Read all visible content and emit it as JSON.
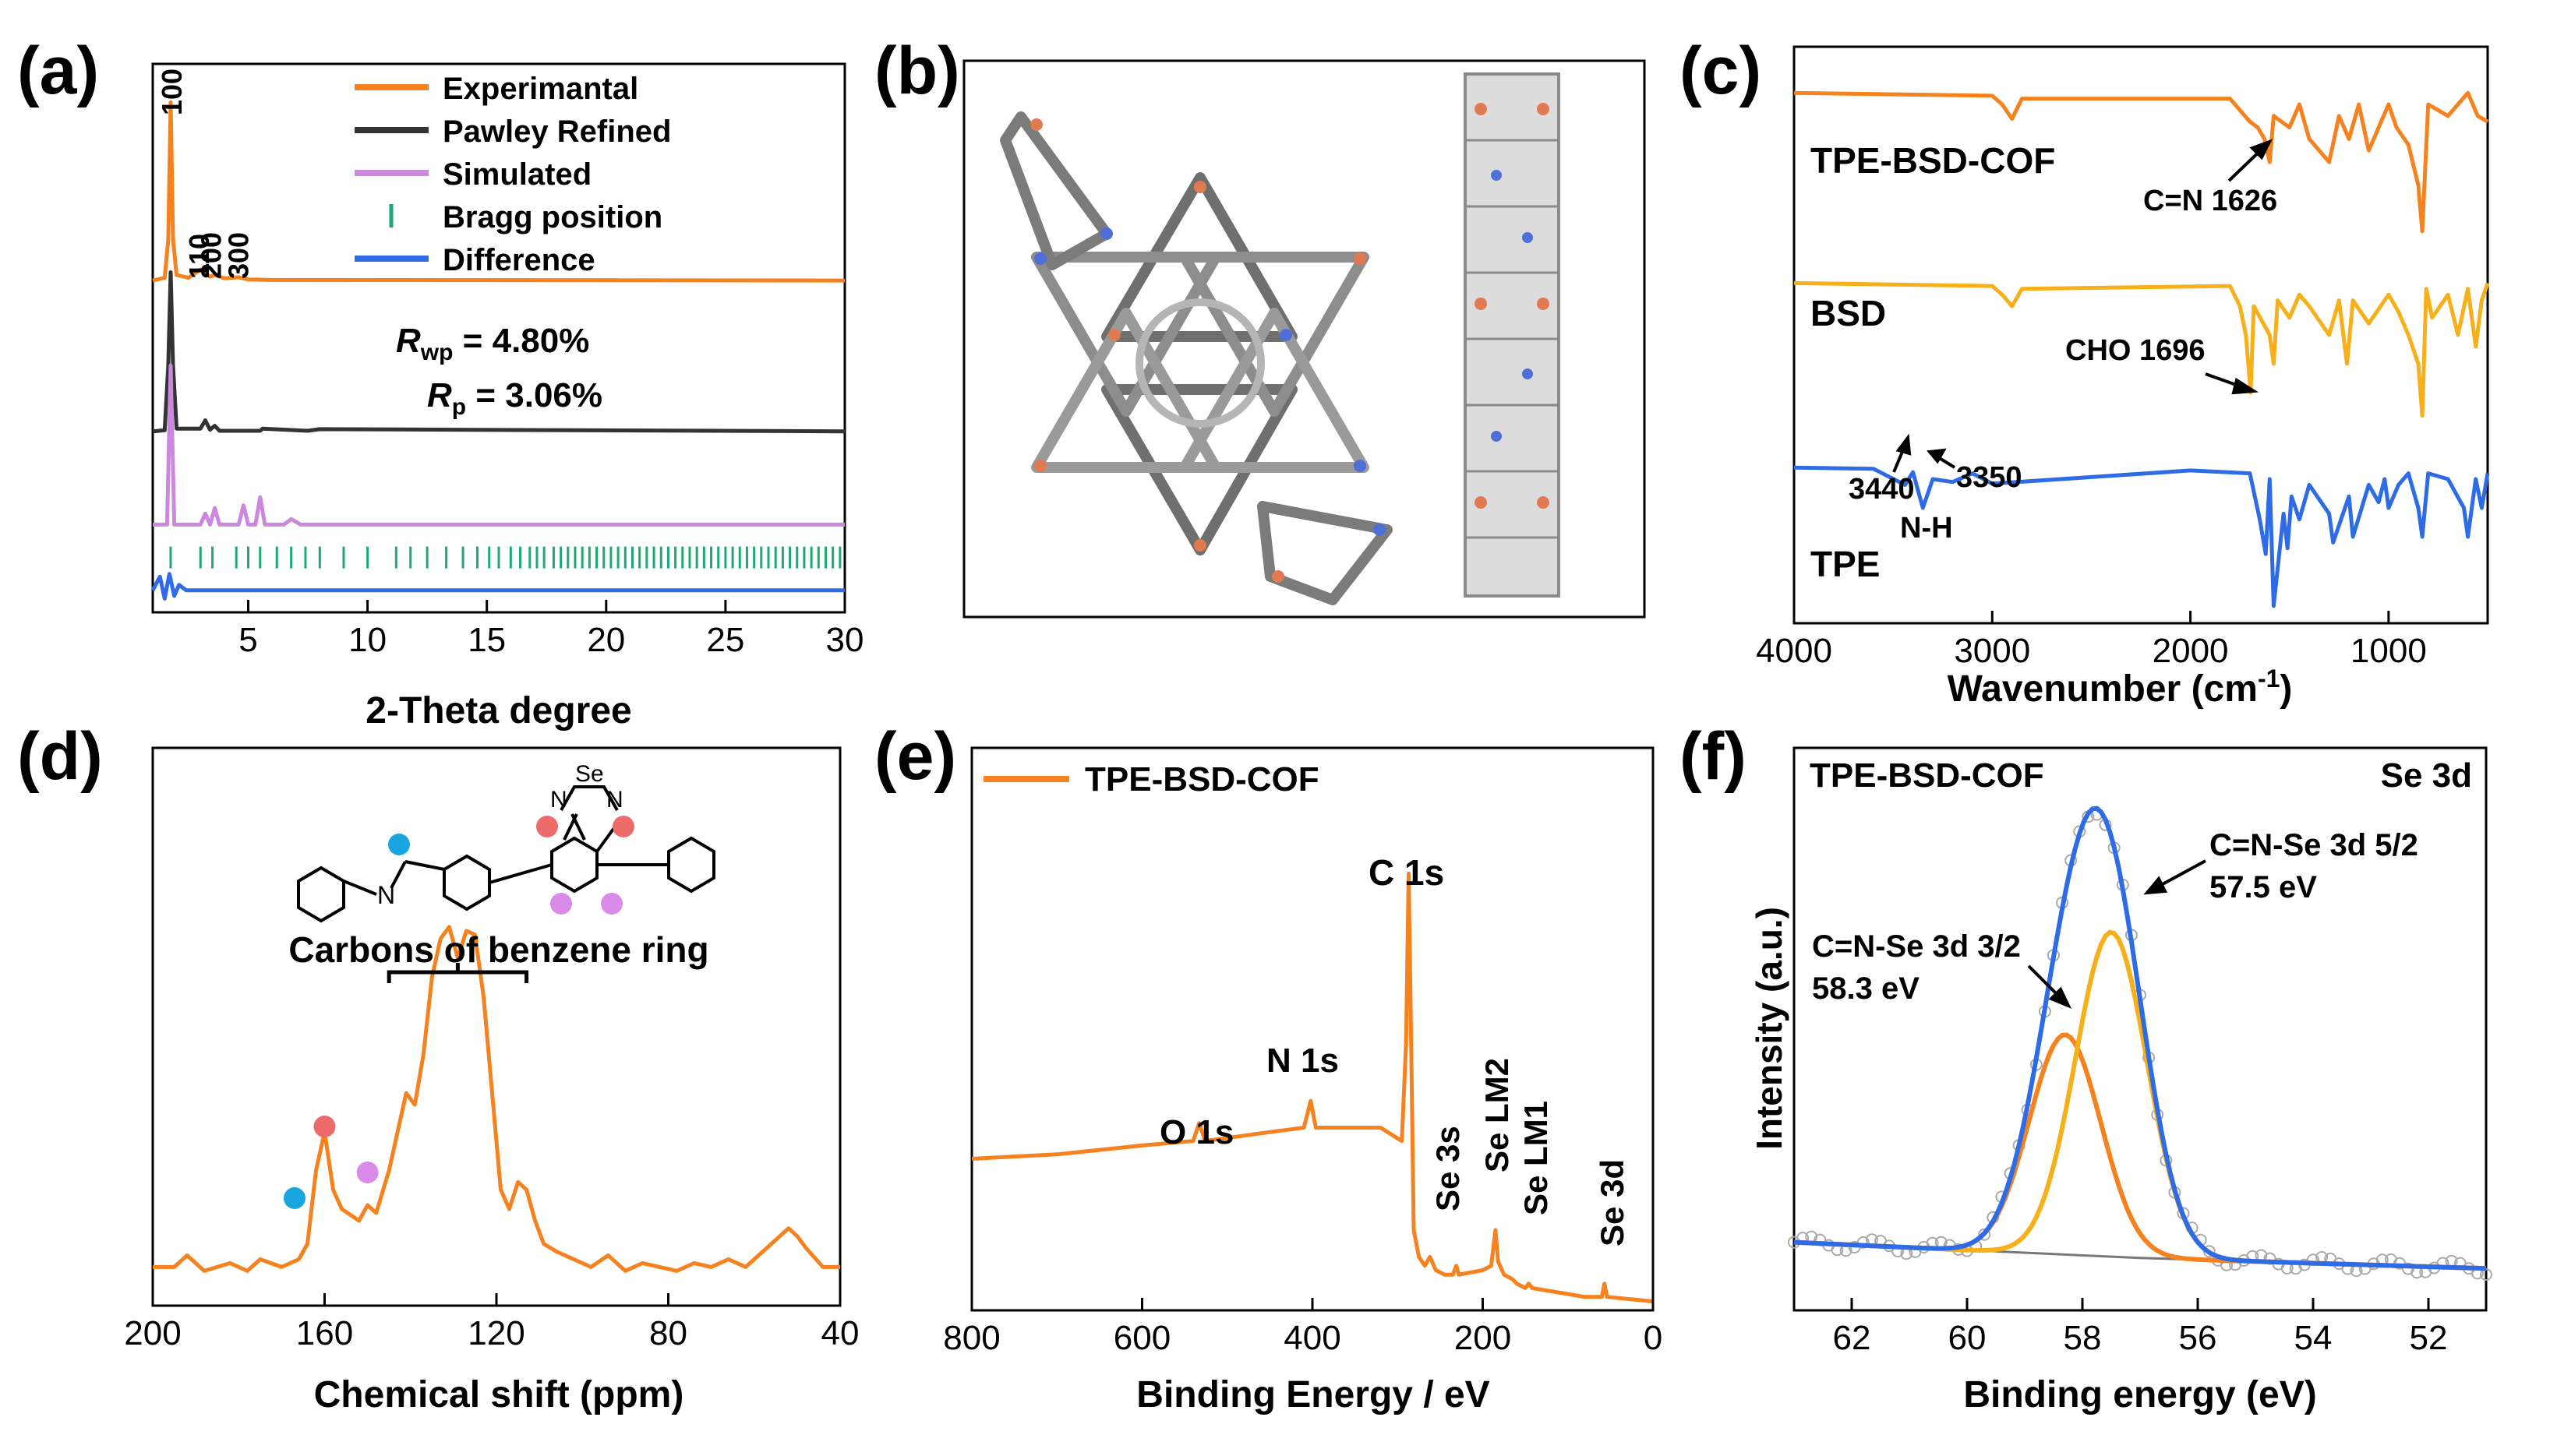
{
  "figure": {
    "colors": {
      "orange": "#F5821F",
      "dark": "#333333",
      "violet": "#CC88DD",
      "green": "#1FA874",
      "blue": "#2E6BE6",
      "gold": "#F7B01A",
      "coral": "#EE6B6B",
      "cyan": "#19A6E0",
      "pink": "#D98BE8",
      "gray": "#777777"
    }
  },
  "chart_data": [
    {
      "id": "a",
      "panel_label": "(a)",
      "type": "line",
      "xlabel": "2-Theta degree",
      "ylabel": "",
      "xlim": [
        1,
        30
      ],
      "ylim": [
        0,
        1
      ],
      "xticks": [
        "5",
        "10",
        "15",
        "20",
        "25",
        "30"
      ],
      "legend": [
        "Experimantal",
        "Pawley Refined",
        "Simulated",
        "Bragg position",
        "Difference"
      ],
      "peak_labels": [
        "100",
        "110",
        "200",
        "300"
      ],
      "peak_positions": [
        1.75,
        2.9,
        3.4,
        4.55
      ],
      "r_wp": {
        "sym": "R",
        "sub": "wp",
        "value": " = 4.80%"
      },
      "r_p": {
        "sym": "R",
        "sub": "p",
        "value": " = 3.06%"
      },
      "series": [
        {
          "name": "Experimantal",
          "x": [
            1,
            1.5,
            1.65,
            1.75,
            1.85,
            2.0,
            2.5,
            3.0,
            3.4,
            3.6,
            4.0,
            4.6,
            5.0,
            6,
            30
          ],
          "values": [
            0.605,
            0.61,
            0.68,
            0.93,
            0.68,
            0.615,
            0.61,
            0.625,
            0.612,
            0.615,
            0.609,
            0.611,
            0.607,
            0.606,
            0.605
          ]
        },
        {
          "name": "Pawley Refined",
          "x": [
            1,
            1.5,
            1.65,
            1.75,
            1.85,
            2.0,
            3.0,
            3.2,
            3.4,
            3.6,
            3.8,
            5.5,
            5.6,
            7.5,
            8,
            30
          ],
          "values": [
            0.33,
            0.332,
            0.45,
            0.62,
            0.45,
            0.335,
            0.335,
            0.35,
            0.333,
            0.34,
            0.331,
            0.331,
            0.335,
            0.331,
            0.334,
            0.33
          ]
        },
        {
          "name": "Simulated",
          "x": [
            1,
            1.6,
            1.75,
            1.9,
            3.0,
            3.2,
            3.4,
            3.6,
            3.8,
            4.6,
            4.8,
            5.0,
            5.3,
            5.5,
            5.7,
            6.5,
            6.8,
            7.2,
            30
          ],
          "values": [
            0.16,
            0.16,
            0.45,
            0.16,
            0.16,
            0.18,
            0.16,
            0.19,
            0.16,
            0.16,
            0.195,
            0.16,
            0.16,
            0.21,
            0.16,
            0.16,
            0.17,
            0.16,
            0.16
          ]
        },
        {
          "name": "Difference",
          "x": [
            1,
            1.3,
            1.5,
            1.7,
            1.9,
            2.1,
            2.4,
            3,
            30
          ],
          "values": [
            0.04,
            0.065,
            0.025,
            0.07,
            0.03,
            0.05,
            0.04,
            0.04,
            0.04
          ]
        }
      ],
      "bragg": {
        "y": 0.1,
        "positions": [
          1.75,
          3.0,
          3.5,
          4.5,
          5.0,
          5.5,
          6.2,
          6.8,
          7.4,
          8.0,
          9.0,
          10.0,
          11.2,
          11.8,
          12.5,
          13.3,
          14.0,
          14.6,
          15.1,
          15.5,
          16.0,
          16.4,
          16.8,
          17.1,
          17.4,
          17.8,
          18.1,
          18.4,
          18.7,
          19.0,
          19.3,
          19.6,
          19.9,
          20.2,
          20.5,
          20.8,
          21.1,
          21.4,
          21.7,
          22.0,
          22.3,
          22.6,
          22.9,
          23.2,
          23.5,
          23.8,
          24.1,
          24.4,
          24.7,
          25.0,
          25.3,
          25.6,
          25.9,
          26.2,
          26.5,
          26.8,
          27.1,
          27.4,
          27.7,
          28.0,
          28.3,
          28.6,
          28.9,
          29.2,
          29.5,
          29.8
        ]
      }
    },
    {
      "id": "b",
      "panel_label": "(b)",
      "type": "image",
      "description_icons": [
        "star-framework-icon",
        "stacked-column-icon"
      ]
    },
    {
      "id": "c",
      "panel_label": "(c)",
      "type": "line",
      "xlabel": "Wavenumber (cm",
      "xlabel_sup": "-1",
      "xlabel_end": ")",
      "xlim": [
        4000,
        500
      ],
      "ylim": [
        0,
        1
      ],
      "xticks": [
        "4000",
        "3000",
        "2000",
        "1000"
      ],
      "series": [
        {
          "name": "TPE-BSD-COF",
          "x": [
            4000,
            3000,
            2950,
            2900,
            2850,
            1800,
            1700,
            1660,
            1626,
            1600,
            1580,
            1500,
            1450,
            1400,
            1300,
            1250,
            1200,
            1150,
            1100,
            1000,
            960,
            900,
            850,
            830,
            800,
            700,
            600,
            550,
            500
          ],
          "values": [
            0.92,
            0.915,
            0.9,
            0.875,
            0.91,
            0.91,
            0.87,
            0.86,
            0.84,
            0.8,
            0.88,
            0.86,
            0.9,
            0.84,
            0.8,
            0.88,
            0.84,
            0.9,
            0.82,
            0.9,
            0.86,
            0.83,
            0.76,
            0.68,
            0.9,
            0.88,
            0.92,
            0.88,
            0.87
          ]
        },
        {
          "name": "BSD",
          "x": [
            4000,
            3000,
            2950,
            2900,
            2850,
            1800,
            1750,
            1720,
            1696,
            1680,
            1600,
            1580,
            1560,
            1500,
            1450,
            1400,
            1300,
            1250,
            1210,
            1180,
            1100,
            1000,
            950,
            900,
            850,
            830,
            810,
            780,
            700,
            650,
            600,
            560,
            530,
            500
          ],
          "values": [
            0.59,
            0.585,
            0.57,
            0.55,
            0.58,
            0.585,
            0.55,
            0.5,
            0.4,
            0.55,
            0.5,
            0.45,
            0.56,
            0.53,
            0.57,
            0.55,
            0.5,
            0.56,
            0.45,
            0.56,
            0.52,
            0.57,
            0.54,
            0.5,
            0.45,
            0.36,
            0.58,
            0.53,
            0.57,
            0.5,
            0.58,
            0.48,
            0.56,
            0.59
          ]
        },
        {
          "name": "TPE",
          "x": [
            4000,
            3600,
            3440,
            3400,
            3350,
            3300,
            3200,
            3100,
            3000,
            2000,
            1700,
            1650,
            1620,
            1600,
            1580,
            1530,
            1510,
            1490,
            1450,
            1400,
            1300,
            1280,
            1200,
            1180,
            1100,
            1050,
            1020,
            1000,
            950,
            900,
            850,
            830,
            800,
            700,
            620,
            600,
            560,
            530,
            500
          ],
          "values": [
            0.27,
            0.268,
            0.24,
            0.262,
            0.2,
            0.25,
            0.245,
            0.26,
            0.242,
            0.265,
            0.26,
            0.18,
            0.12,
            0.25,
            0.03,
            0.19,
            0.13,
            0.22,
            0.18,
            0.24,
            0.19,
            0.14,
            0.22,
            0.15,
            0.24,
            0.21,
            0.25,
            0.2,
            0.24,
            0.26,
            0.2,
            0.15,
            0.26,
            0.25,
            0.2,
            0.15,
            0.25,
            0.2,
            0.26
          ]
        }
      ],
      "labels": [
        "TPE-BSD-COF",
        "BSD",
        "TPE"
      ],
      "annotations": [
        "C=N 1626",
        "CHO 1696",
        "3440",
        "3350",
        "N-H"
      ]
    },
    {
      "id": "d",
      "panel_label": "(d)",
      "type": "line",
      "xlabel": "Chemical shift (ppm)",
      "xlim": [
        200,
        40
      ],
      "ylim": [
        0,
        1
      ],
      "xticks": [
        "200",
        "160",
        "120",
        "80",
        "40"
      ],
      "series": [
        {
          "name": "TPE-BSD-COF",
          "x": [
            200,
            195,
            192,
            188,
            182,
            178,
            175,
            170,
            166,
            164,
            162,
            160,
            158,
            156,
            152,
            150,
            148,
            145,
            143,
            141,
            139,
            137,
            135,
            133,
            131,
            129,
            127,
            125,
            123,
            121,
            119,
            117,
            115,
            113,
            111,
            109,
            106,
            102,
            98,
            94,
            90,
            86,
            82,
            78,
            74,
            70,
            66,
            62,
            58,
            54,
            52,
            50,
            48,
            44,
            40
          ],
          "values": [
            0.1,
            0.1,
            0.13,
            0.09,
            0.11,
            0.09,
            0.12,
            0.1,
            0.12,
            0.16,
            0.35,
            0.45,
            0.3,
            0.25,
            0.22,
            0.26,
            0.24,
            0.35,
            0.45,
            0.55,
            0.52,
            0.65,
            0.85,
            0.95,
            0.98,
            0.9,
            0.97,
            0.96,
            0.8,
            0.55,
            0.3,
            0.25,
            0.32,
            0.3,
            0.22,
            0.16,
            0.14,
            0.12,
            0.1,
            0.13,
            0.09,
            0.11,
            0.1,
            0.09,
            0.11,
            0.1,
            0.12,
            0.1,
            0.14,
            0.18,
            0.2,
            0.18,
            0.15,
            0.1,
            0.1
          ]
        }
      ],
      "bracket_label": "Carbons of benzene ring",
      "bracket_range": [
        145,
        113
      ],
      "peak_markers": [
        {
          "ppm": 163,
          "color": "cyan"
        },
        {
          "ppm": 160,
          "color": "coral"
        },
        {
          "ppm": 150,
          "color": "pink"
        }
      ],
      "molecule_labels": [
        "N",
        "Se",
        "N",
        "N"
      ]
    },
    {
      "id": "e",
      "panel_label": "(e)",
      "type": "line",
      "xlabel": "Binding Energy / eV",
      "xlim": [
        800,
        0
      ],
      "ylim": [
        0,
        1
      ],
      "xticks": [
        "800",
        "600",
        "400",
        "200",
        "0"
      ],
      "legend": [
        "TPE-BSD-COF"
      ],
      "series": [
        {
          "name": "TPE-BSD-COF",
          "x": [
            800,
            700,
            600,
            540,
            533,
            526,
            450,
            410,
            402,
            396,
            320,
            295,
            290,
            287,
            284,
            281,
            275,
            268,
            262,
            255,
            245,
            235,
            231,
            228,
            200,
            190,
            185,
            182,
            175,
            165,
            160,
            150,
            146,
            142,
            80,
            60,
            57,
            54,
            0
          ],
          "values": [
            0.34,
            0.35,
            0.37,
            0.38,
            0.42,
            0.38,
            0.4,
            0.41,
            0.47,
            0.41,
            0.41,
            0.38,
            0.6,
            0.98,
            0.6,
            0.18,
            0.12,
            0.1,
            0.12,
            0.09,
            0.08,
            0.08,
            0.1,
            0.08,
            0.09,
            0.1,
            0.18,
            0.11,
            0.08,
            0.07,
            0.06,
            0.05,
            0.06,
            0.05,
            0.03,
            0.03,
            0.06,
            0.03,
            0.02
          ]
        }
      ],
      "peak_labels": [
        "O 1s",
        "N 1s",
        "C 1s",
        "Se 3s",
        "Se LM2",
        "Se LM1",
        "Se 3d"
      ]
    },
    {
      "id": "f",
      "panel_label": "(f)",
      "type": "line",
      "xlabel": "Binding energy (eV)",
      "ylabel": "Intensity (a.u.)",
      "xlim": [
        63,
        51
      ],
      "ylim": [
        0,
        1
      ],
      "xticks": [
        "62",
        "60",
        "58",
        "56",
        "54",
        "52"
      ],
      "corner_labels": [
        "TPE-BSD-COF",
        "Se 3d"
      ],
      "components": [
        {
          "name": "C=N-Se 3d 3/2",
          "energy": "58.3 eV",
          "center": 58.3,
          "sigma": 0.62,
          "height": 0.42,
          "color": "orange"
        },
        {
          "name": "C=N-Se 3d 5/2",
          "energy": "57.5 eV",
          "center": 57.5,
          "sigma": 0.62,
          "height": 0.62,
          "color": "gold"
        }
      ],
      "baseline": {
        "x": [
          63,
          57,
          51
        ],
        "values": [
          0.13,
          0.1,
          0.08
        ]
      }
    }
  ]
}
